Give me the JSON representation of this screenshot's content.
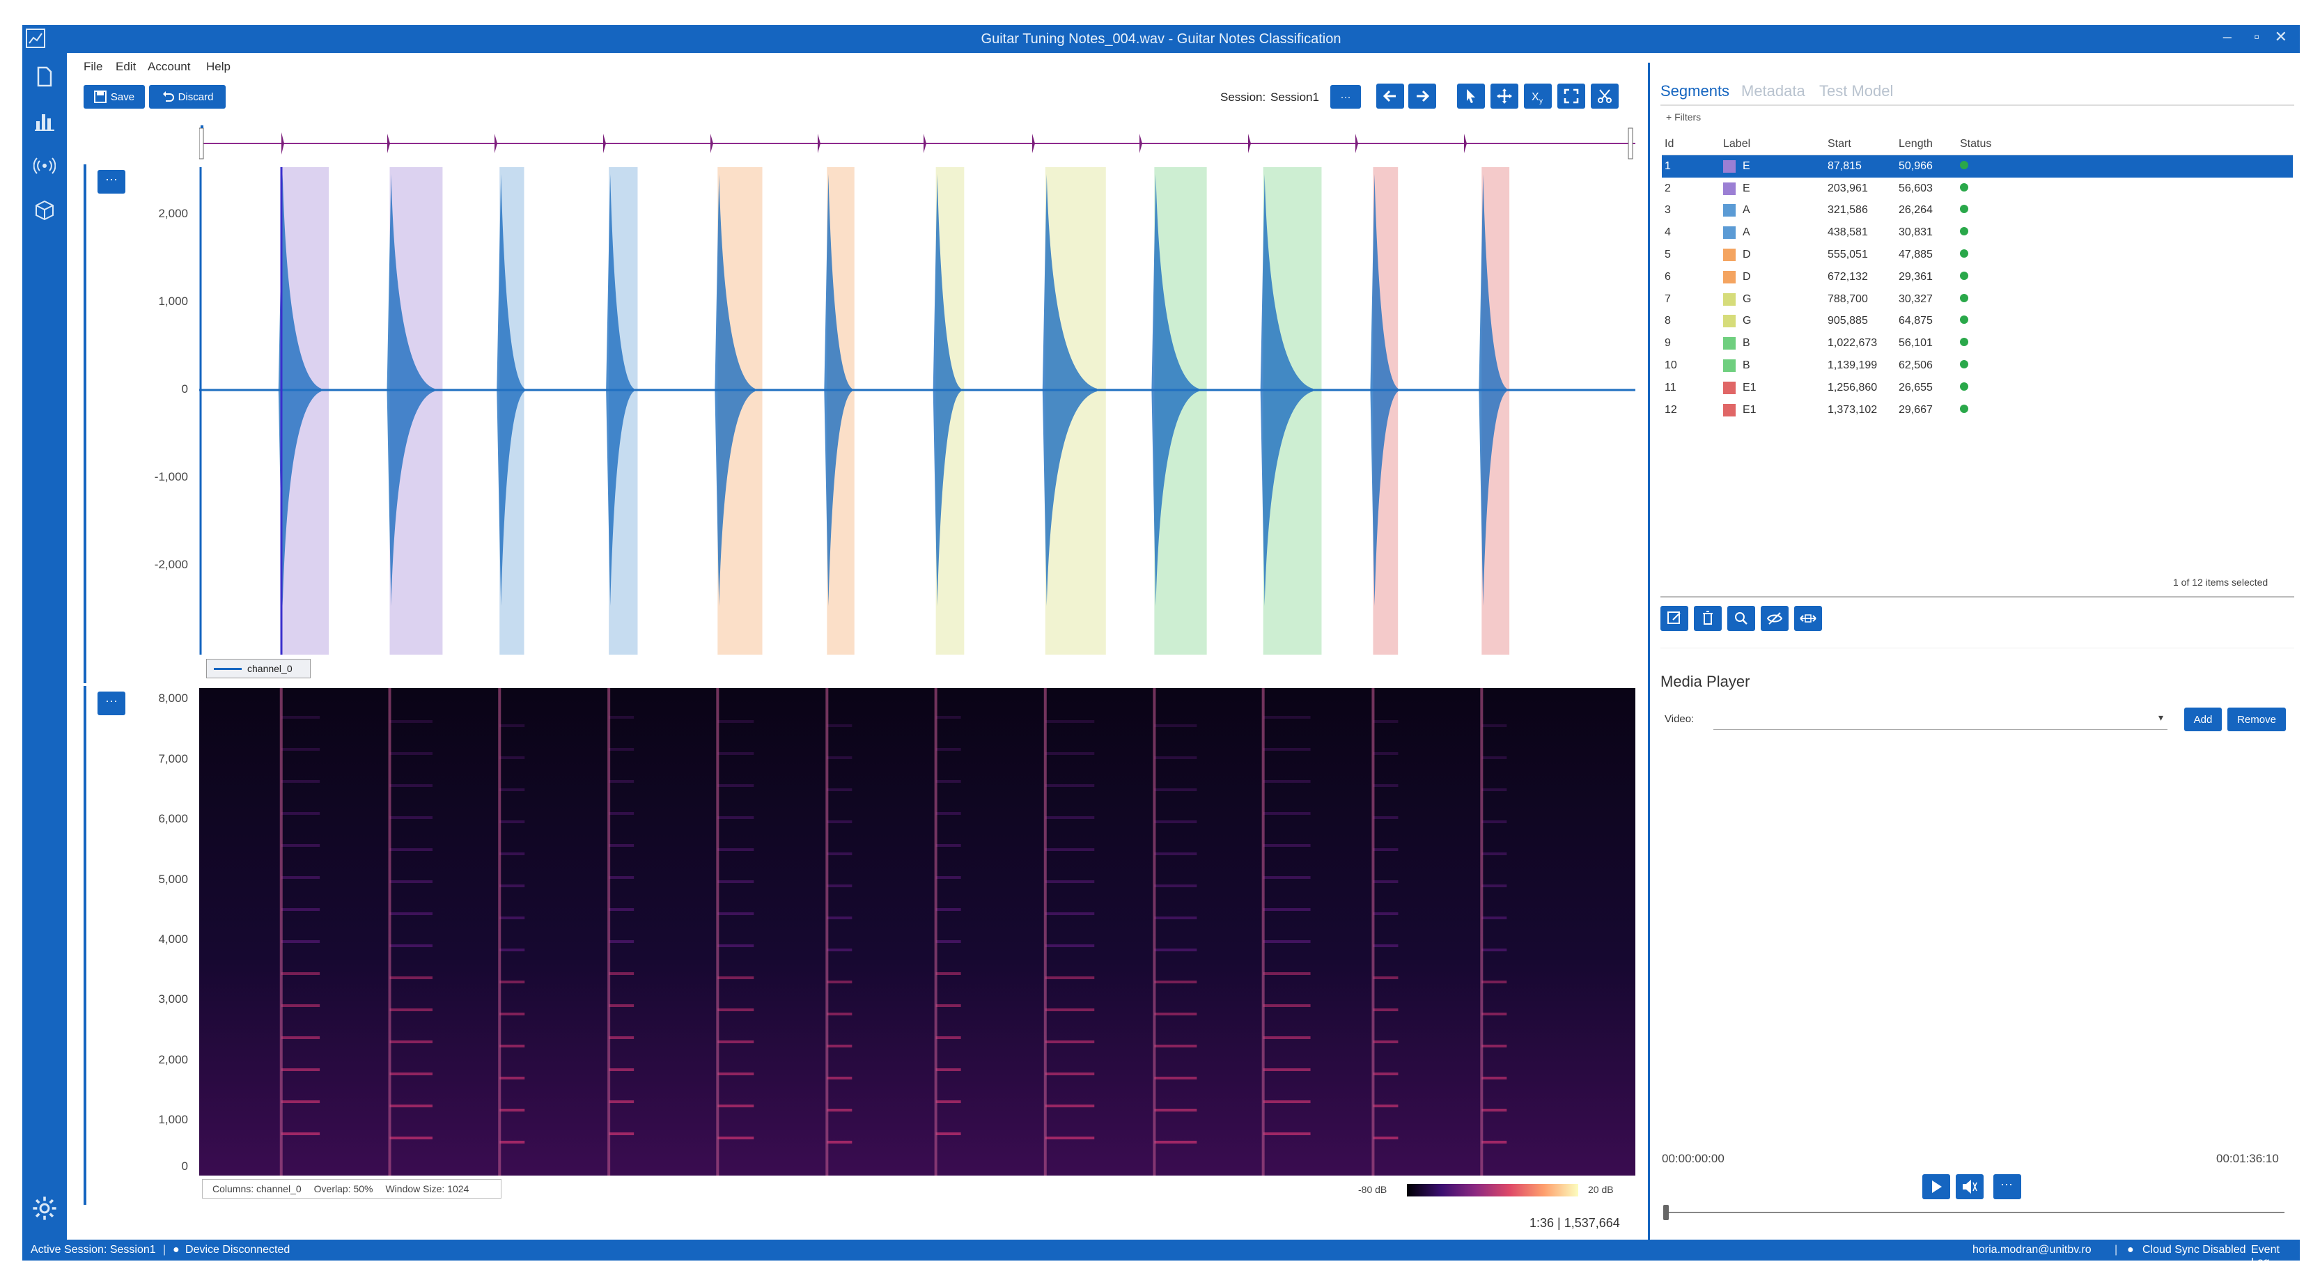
{
  "window": {
    "title": "Guitar Tuning Notes_004.wav - Guitar Notes Classification"
  },
  "menu": [
    "File",
    "Edit",
    "Account",
    "Help"
  ],
  "toolbar": {
    "save_label": "Save",
    "discard_label": "Discard",
    "session_label": "Session:",
    "session_value": "Session1",
    "more_label": "···"
  },
  "waveform": {
    "y_ticks": [
      "2,000",
      "1,000",
      "0",
      "-1,000",
      "-2,000"
    ],
    "legend": "channel_0",
    "more_label": "···"
  },
  "spectrogram": {
    "y_ticks": [
      "8,000",
      "7,000",
      "6,000",
      "5,000",
      "4,000",
      "3,000",
      "2,000",
      "1,000",
      "0"
    ],
    "columns_label": "Columns: channel_0",
    "overlap_label": "Overlap: 50%",
    "window_label": "Window Size: 1024",
    "db_min": "-80 dB",
    "db_max": "20 dB",
    "more_label": "···"
  },
  "position_readout": "1:36 | 1,537,664",
  "right_panel": {
    "tabs": [
      "Segments",
      "Metadata",
      "Test Model"
    ],
    "filters_label": "+ Filters",
    "columns": [
      "Id",
      "Label",
      "Start",
      "Length",
      "Status"
    ],
    "rows": [
      {
        "id": "1",
        "label": "E",
        "color": "#9b7fd4",
        "start": "87,815",
        "length": "50,966"
      },
      {
        "id": "2",
        "label": "E",
        "color": "#9b7fd4",
        "start": "203,961",
        "length": "56,603"
      },
      {
        "id": "3",
        "label": "A",
        "color": "#5b9bd5",
        "start": "321,586",
        "length": "26,264"
      },
      {
        "id": "4",
        "label": "A",
        "color": "#5b9bd5",
        "start": "438,581",
        "length": "30,831"
      },
      {
        "id": "5",
        "label": "D",
        "color": "#f4a460",
        "start": "555,051",
        "length": "47,885"
      },
      {
        "id": "6",
        "label": "D",
        "color": "#f4a460",
        "start": "672,132",
        "length": "29,361"
      },
      {
        "id": "7",
        "label": "G",
        "color": "#d6dc7a",
        "start": "788,700",
        "length": "30,327"
      },
      {
        "id": "8",
        "label": "G",
        "color": "#d6dc7a",
        "start": "905,885",
        "length": "64,875"
      },
      {
        "id": "9",
        "label": "B",
        "color": "#6fcf7f",
        "start": "1,022,673",
        "length": "56,101"
      },
      {
        "id": "10",
        "label": "B",
        "color": "#6fcf7f",
        "start": "1,139,199",
        "length": "62,506"
      },
      {
        "id": "11",
        "label": "E1",
        "color": "#e06666",
        "start": "1,256,860",
        "length": "26,655"
      },
      {
        "id": "12",
        "label": "E1",
        "color": "#e06666",
        "start": "1,373,102",
        "length": "29,667"
      }
    ],
    "selection_text": "1 of 12 items selected",
    "media_title": "Media Player",
    "video_label": "Video:",
    "add_label": "Add",
    "remove_label": "Remove",
    "time_start": "00:00:00:00",
    "time_end": "00:01:36:10"
  },
  "status": {
    "active_session": "Active Session: Session1",
    "device": "Device Disconnected",
    "user": "horia.modran@unitbv.ro",
    "cloud": "Cloud Sync Disabled",
    "event_log": "Event Log"
  },
  "colors": {
    "accent": "#1565c0"
  }
}
